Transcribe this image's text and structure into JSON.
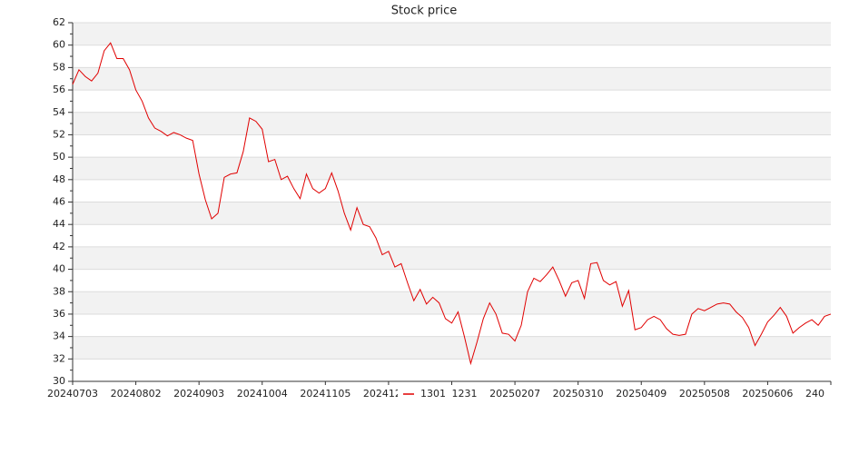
{
  "chart_data": {
    "type": "line",
    "title": "Stock price",
    "categories": [
      "20240703",
      null,
      null,
      null,
      null,
      null,
      null,
      null,
      null,
      null,
      "20240802",
      null,
      null,
      null,
      null,
      null,
      null,
      null,
      null,
      null,
      "20240903",
      null,
      null,
      null,
      null,
      null,
      null,
      null,
      null,
      null,
      "20241004",
      null,
      null,
      null,
      null,
      null,
      null,
      null,
      null,
      null,
      "20241105",
      null,
      null,
      null,
      null,
      null,
      null,
      null,
      null,
      null,
      "202412",
      null,
      null,
      null,
      null,
      null,
      null,
      null,
      null,
      null,
      "1231",
      null,
      null,
      null,
      null,
      null,
      null,
      null,
      null,
      null,
      "20250207",
      null,
      null,
      null,
      null,
      null,
      null,
      null,
      null,
      null,
      "20250310",
      null,
      null,
      null,
      null,
      null,
      null,
      null,
      null,
      null,
      "20250409",
      null,
      null,
      null,
      null,
      null,
      null,
      null,
      null,
      null,
      "20250508",
      null,
      null,
      null,
      null,
      null,
      null,
      null,
      null,
      null,
      "20250606",
      null,
      null,
      null,
      null,
      null,
      null,
      null,
      null,
      null,
      "240"
    ],
    "series": [
      {
        "name": "1301",
        "color": "#e00000",
        "values": [
          56.5,
          57.8,
          57.2,
          56.8,
          57.5,
          59.5,
          60.2,
          58.8,
          58.8,
          57.8,
          56.0,
          55.0,
          53.5,
          52.6,
          52.3,
          51.9,
          52.2,
          52.0,
          51.7,
          51.5,
          48.5,
          46.2,
          44.5,
          45.0,
          48.2,
          48.5,
          48.6,
          50.5,
          53.5,
          53.2,
          52.5,
          49.6,
          49.8,
          48.0,
          48.3,
          47.2,
          46.3,
          48.5,
          47.2,
          46.8,
          47.2,
          48.6,
          47.0,
          45.0,
          43.5,
          45.5,
          44.0,
          43.8,
          42.8,
          41.3,
          41.6,
          40.2,
          40.5,
          38.8,
          37.2,
          38.2,
          36.9,
          37.5,
          37.0,
          35.6,
          35.2,
          36.2,
          34.0,
          31.6,
          33.5,
          35.6,
          37.0,
          36.0,
          34.3,
          34.2,
          33.6,
          35.0,
          38.0,
          39.2,
          38.9,
          39.5,
          40.2,
          39.0,
          37.6,
          38.8,
          39.0,
          37.4,
          40.5,
          40.6,
          39.0,
          38.6,
          38.9,
          36.7,
          38.1,
          34.6,
          34.8,
          35.5,
          35.8,
          35.5,
          34.7,
          34.2,
          34.1,
          34.2,
          36.0,
          36.5,
          36.3,
          36.6,
          36.9,
          37.0,
          36.9,
          36.2,
          35.7,
          34.8,
          33.2,
          34.2,
          35.3,
          35.9,
          36.6,
          35.8,
          34.3,
          34.8,
          35.2,
          35.5,
          35.0,
          35.8,
          36.0
        ]
      }
    ],
    "ylim": [
      30,
      62
    ],
    "yticks": [
      30,
      32,
      34,
      36,
      38,
      40,
      42,
      44,
      46,
      48,
      50,
      52,
      54,
      56,
      58,
      60,
      62
    ],
    "grid": true
  }
}
